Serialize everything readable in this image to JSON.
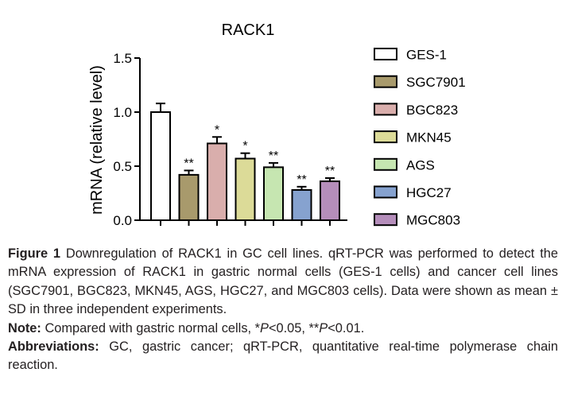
{
  "chart_data": {
    "type": "bar",
    "title": "RACK1",
    "xlabel": "",
    "ylabel": "mRNA (relative level)",
    "ylim": [
      0,
      1.5
    ],
    "yticks": [
      "0.0",
      "0.5",
      "1.0",
      "1.5"
    ],
    "categories": [
      "GES-1",
      "SGC7901",
      "BGC823",
      "MKN45",
      "AGS",
      "HGC27",
      "MGC803"
    ],
    "values": [
      1.0,
      0.42,
      0.71,
      0.57,
      0.49,
      0.28,
      0.36
    ],
    "errors": [
      0.08,
      0.04,
      0.06,
      0.05,
      0.04,
      0.03,
      0.03
    ],
    "significance": [
      "",
      "**",
      "*",
      "*",
      "**",
      "**",
      "**"
    ],
    "colors": [
      "#ffffff",
      "#a89a6c",
      "#d9aeac",
      "#dcdb98",
      "#c6e6b1",
      "#86a2cf",
      "#b58ebb"
    ],
    "legend": [
      "GES-1",
      "SGC7901",
      "BGC823",
      "MKN45",
      "AGS",
      "HGC27",
      "MGC803"
    ]
  },
  "caption": {
    "figure_label": "Figure 1",
    "figure_text": "Downregulation of RACK1 in GC cell lines. qRT-PCR was performed to detect the mRNA expression of RACK1 in gastric normal cells (GES-1 cells) and cancer cell lines (SGC7901, BGC823, MKN45, AGS, HGC27, and MGC803 cells). Data were shown as mean ± SD in three independent experiments.",
    "note_label": "Note:",
    "note_text_1": "Compared with gastric normal cells, *",
    "note_p1": "P",
    "note_text_2": "<0.05, **",
    "note_p2": "P",
    "note_text_3": "<0.01.",
    "abbrev_label": "Abbreviations:",
    "abbrev_text": "GC, gastric cancer; qRT-PCR, quantitative real-time polymerase chain reaction."
  }
}
